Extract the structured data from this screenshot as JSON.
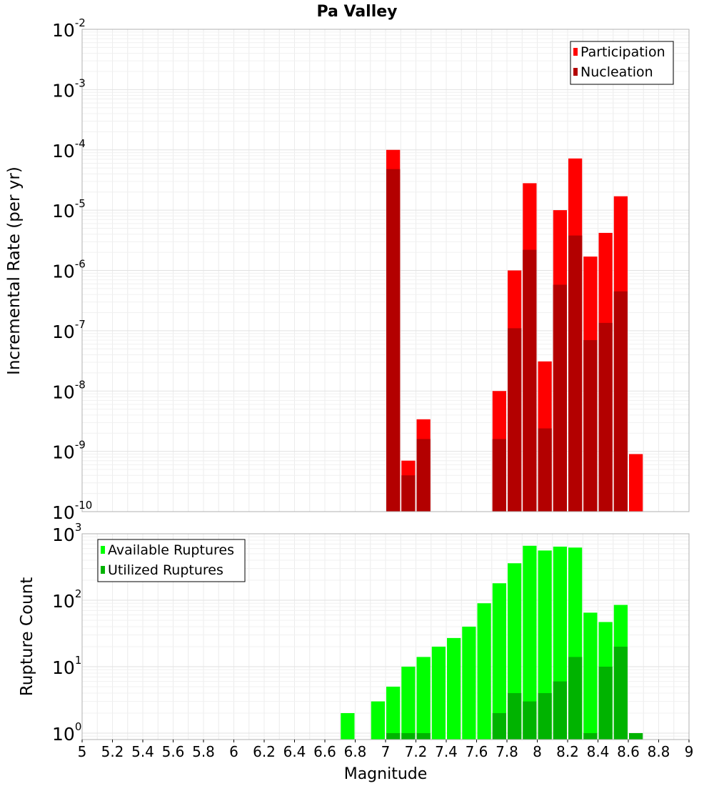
{
  "chart_data": {
    "title": "Pa Valley",
    "x_axis": {
      "label": "Magnitude",
      "range": [
        5,
        9
      ],
      "ticks": [
        "5",
        "5.2",
        "5.4",
        "5.6",
        "5.8",
        "6",
        "6.2",
        "6.4",
        "6.6",
        "6.8",
        "7",
        "7.2",
        "7.4",
        "7.6",
        "7.8",
        "8",
        "8.2",
        "8.4",
        "8.6",
        "8.8",
        "9"
      ]
    },
    "panels": [
      {
        "name": "rate-panel",
        "type": "bar",
        "y_scale": "log",
        "ylabel": "Incremental Rate (per yr)",
        "ylim": [
          1e-10,
          0.01
        ],
        "y_ticks": [
          {
            "base": "10",
            "exp": "-2"
          },
          {
            "base": "10",
            "exp": "-3"
          },
          {
            "base": "10",
            "exp": "-4"
          },
          {
            "base": "10",
            "exp": "-5"
          },
          {
            "base": "10",
            "exp": "-6"
          },
          {
            "base": "10",
            "exp": "-7"
          },
          {
            "base": "10",
            "exp": "-8"
          },
          {
            "base": "10",
            "exp": "-9"
          },
          {
            "base": "10",
            "exp": "-10"
          }
        ],
        "legend": {
          "position": "top-right"
        },
        "series": [
          {
            "name": "Participation",
            "color": "#ff0000",
            "points": [
              {
                "x": 7.05,
                "y": 0.0001
              },
              {
                "x": 7.15,
                "y": 7e-10
              },
              {
                "x": 7.25,
                "y": 3.4e-09
              },
              {
                "x": 7.75,
                "y": 1e-08
              },
              {
                "x": 7.85,
                "y": 1e-06
              },
              {
                "x": 7.95,
                "y": 2.8e-05
              },
              {
                "x": 8.05,
                "y": 3.1e-08
              },
              {
                "x": 8.15,
                "y": 1e-05
              },
              {
                "x": 8.25,
                "y": 7.2e-05
              },
              {
                "x": 8.35,
                "y": 1.7e-06
              },
              {
                "x": 8.45,
                "y": 4.2e-06
              },
              {
                "x": 8.55,
                "y": 1.7e-05
              },
              {
                "x": 8.65,
                "y": 9e-10
              }
            ]
          },
          {
            "name": "Nucleation",
            "color": "#b30000",
            "points": [
              {
                "x": 7.05,
                "y": 4.8e-05
              },
              {
                "x": 7.15,
                "y": 4e-10
              },
              {
                "x": 7.25,
                "y": 1.6e-09
              },
              {
                "x": 7.75,
                "y": 1.6e-09
              },
              {
                "x": 7.85,
                "y": 1.1e-07
              },
              {
                "x": 7.95,
                "y": 2.2e-06
              },
              {
                "x": 8.05,
                "y": 2.4e-09
              },
              {
                "x": 8.15,
                "y": 5.8e-07
              },
              {
                "x": 8.25,
                "y": 3.8e-06
              },
              {
                "x": 8.35,
                "y": 7e-08
              },
              {
                "x": 8.45,
                "y": 1.35e-07
              },
              {
                "x": 8.55,
                "y": 4.5e-07
              }
            ]
          }
        ]
      },
      {
        "name": "count-panel",
        "type": "bar",
        "y_scale": "log",
        "ylabel": "Rupture Count",
        "ylim": [
          0.8,
          1000
        ],
        "y_ticks": [
          {
            "base": "10",
            "exp": "3",
            "value": 1000
          },
          {
            "base": "10",
            "exp": "2",
            "value": 100
          },
          {
            "base": "10",
            "exp": "1",
            "value": 10
          },
          {
            "base": "10",
            "exp": "0",
            "value": 1
          }
        ],
        "legend": {
          "position": "top-left"
        },
        "series": [
          {
            "name": "Available Ruptures",
            "color": "#00ff00",
            "points": [
              {
                "x": 6.75,
                "y": 2
              },
              {
                "x": 6.95,
                "y": 3
              },
              {
                "x": 7.05,
                "y": 5
              },
              {
                "x": 7.15,
                "y": 10
              },
              {
                "x": 7.25,
                "y": 14
              },
              {
                "x": 7.35,
                "y": 20
              },
              {
                "x": 7.45,
                "y": 27
              },
              {
                "x": 7.55,
                "y": 40
              },
              {
                "x": 7.65,
                "y": 90
              },
              {
                "x": 7.75,
                "y": 180
              },
              {
                "x": 7.85,
                "y": 360
              },
              {
                "x": 7.95,
                "y": 660
              },
              {
                "x": 8.05,
                "y": 560
              },
              {
                "x": 8.15,
                "y": 640
              },
              {
                "x": 8.25,
                "y": 620
              },
              {
                "x": 8.35,
                "y": 65
              },
              {
                "x": 8.45,
                "y": 47
              },
              {
                "x": 8.55,
                "y": 85
              }
            ]
          },
          {
            "name": "Utilized Ruptures",
            "color": "#00b300",
            "points": [
              {
                "x": 7.05,
                "y": 1
              },
              {
                "x": 7.15,
                "y": 1
              },
              {
                "x": 7.25,
                "y": 1
              },
              {
                "x": 7.75,
                "y": 2
              },
              {
                "x": 7.85,
                "y": 4
              },
              {
                "x": 7.95,
                "y": 3
              },
              {
                "x": 8.05,
                "y": 4
              },
              {
                "x": 8.15,
                "y": 6
              },
              {
                "x": 8.25,
                "y": 14
              },
              {
                "x": 8.35,
                "y": 1
              },
              {
                "x": 8.45,
                "y": 10
              },
              {
                "x": 8.55,
                "y": 20
              },
              {
                "x": 8.65,
                "y": 1
              }
            ]
          }
        ]
      }
    ]
  }
}
